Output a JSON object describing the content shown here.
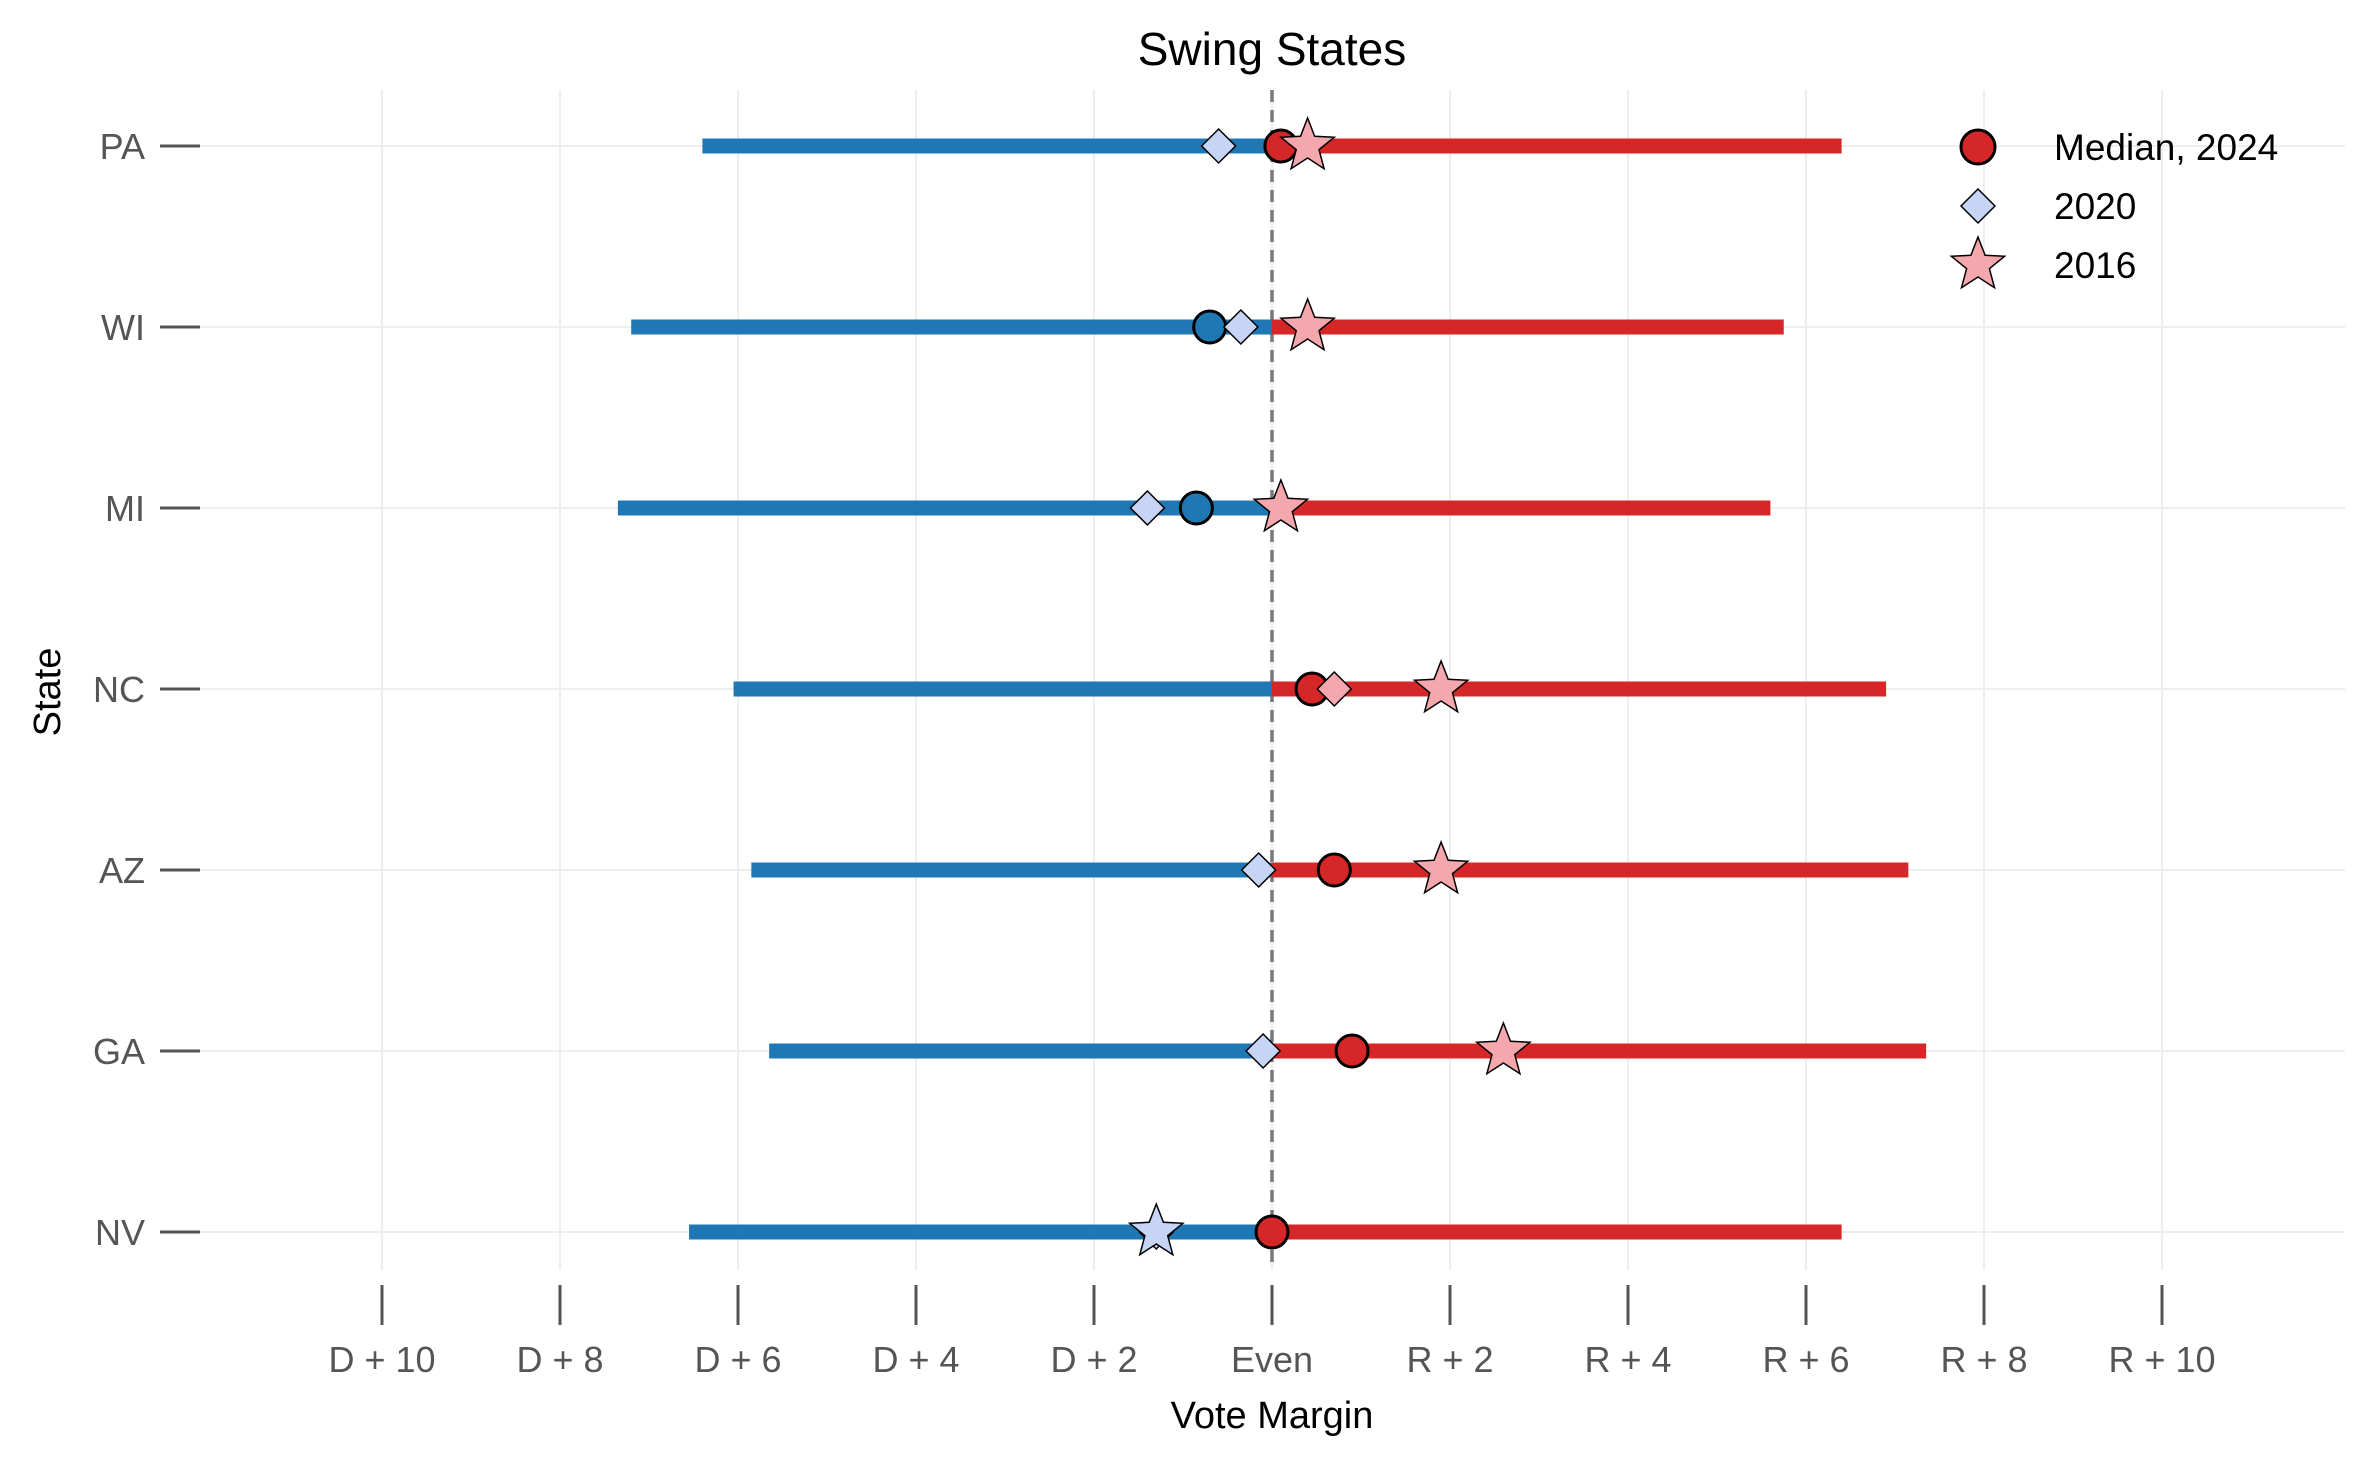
{
  "chart_data": {
    "type": "dot-range",
    "title": "Swing States",
    "xlabel": "Vote Margin",
    "ylabel": "State",
    "xlim": [
      -12,
      12
    ],
    "grid": true,
    "legend_position": "top-right",
    "x_ticks": [
      {
        "value": -10,
        "label": "D + 10"
      },
      {
        "value": -8,
        "label": "D + 8"
      },
      {
        "value": -6,
        "label": "D + 6"
      },
      {
        "value": -4,
        "label": "D + 4"
      },
      {
        "value": -2,
        "label": "D + 2"
      },
      {
        "value": 0,
        "label": "Even"
      },
      {
        "value": 2,
        "label": "R + 2"
      },
      {
        "value": 4,
        "label": "R + 4"
      },
      {
        "value": 6,
        "label": "R + 6"
      },
      {
        "value": 8,
        "label": "R + 8"
      },
      {
        "value": 10,
        "label": "R + 10"
      }
    ],
    "colors": {
      "dem": "#1f77b4",
      "rep": "#d62728",
      "y2020": "#c6d4f5",
      "y2016": "#f4a7ad",
      "reference_line": "#777777",
      "grid": "#eeeeee"
    },
    "legend": [
      {
        "label": "Median, 2024",
        "marker": "circle",
        "color": "#d62728"
      },
      {
        "label": "2020",
        "marker": "diamond",
        "color": "#c6d4f5"
      },
      {
        "label": "2016",
        "marker": "star",
        "color": "#f4a7ad"
      }
    ],
    "states": [
      {
        "state": "PA",
        "low": -6.4,
        "high": 6.4,
        "median_2024": 0.1,
        "result_2020": -0.6,
        "result_2016": 0.4
      },
      {
        "state": "WI",
        "low": -7.2,
        "high": 5.75,
        "median_2024": -0.7,
        "result_2020": -0.35,
        "result_2016": 0.4
      },
      {
        "state": "MI",
        "low": -7.35,
        "high": 5.6,
        "median_2024": -0.85,
        "result_2020": -1.4,
        "result_2016": 0.1
      },
      {
        "state": "NC",
        "low": -6.05,
        "high": 6.9,
        "median_2024": 0.45,
        "result_2020": 0.7,
        "result_2016": 1.9
      },
      {
        "state": "AZ",
        "low": -5.85,
        "high": 7.15,
        "median_2024": 0.7,
        "result_2020": -0.15,
        "result_2016": 1.9
      },
      {
        "state": "GA",
        "low": -5.65,
        "high": 7.35,
        "median_2024": 0.9,
        "result_2020": -0.1,
        "result_2016": 2.6
      },
      {
        "state": "NV",
        "low": -6.55,
        "high": 6.4,
        "median_2024": 0.0,
        "result_2020": -1.3,
        "result_2016": -1.3
      }
    ]
  }
}
